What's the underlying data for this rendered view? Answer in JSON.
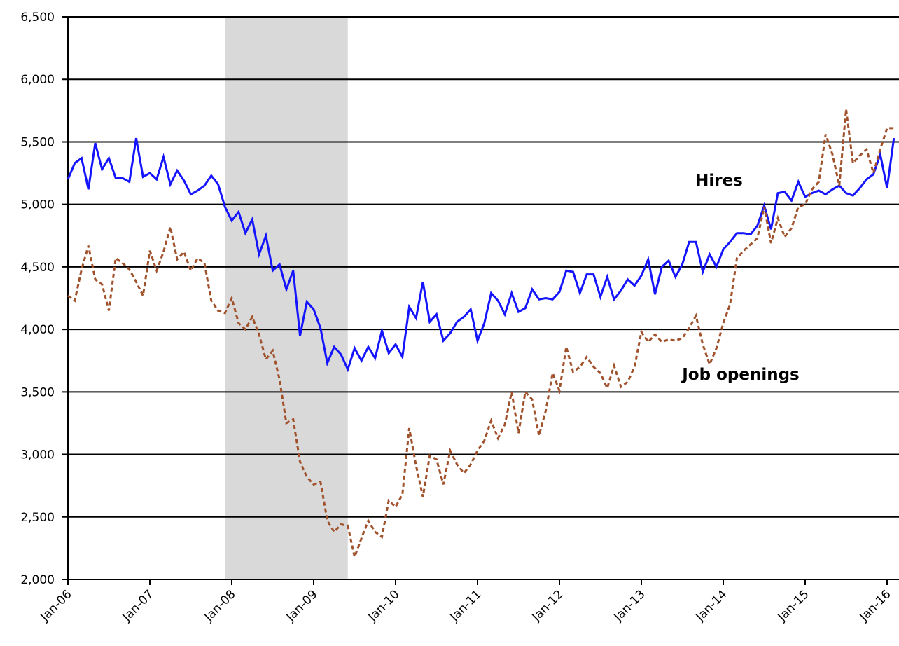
{
  "chart_data": {
    "type": "line",
    "categories": [
      "Jan-06",
      null,
      null,
      null,
      null,
      null,
      null,
      null,
      null,
      null,
      null,
      null,
      "Jan-07",
      null,
      null,
      null,
      null,
      null,
      null,
      null,
      null,
      null,
      null,
      null,
      "Jan-08",
      null,
      null,
      null,
      null,
      null,
      null,
      null,
      null,
      null,
      null,
      null,
      "Jan-09",
      null,
      null,
      null,
      null,
      null,
      null,
      null,
      null,
      null,
      null,
      null,
      "Jan-10",
      null,
      null,
      null,
      null,
      null,
      null,
      null,
      null,
      null,
      null,
      null,
      "Jan-11",
      null,
      null,
      null,
      null,
      null,
      null,
      null,
      null,
      null,
      null,
      null,
      "Jan-12",
      null,
      null,
      null,
      null,
      null,
      null,
      null,
      null,
      null,
      null,
      null,
      "Jan-13",
      null,
      null,
      null,
      null,
      null,
      null,
      null,
      null,
      null,
      null,
      null,
      "Jan-14",
      null,
      null,
      null,
      null,
      null,
      null,
      null,
      null,
      null,
      null,
      null,
      "Jan-15",
      null,
      null,
      null,
      null,
      null,
      null,
      null,
      null,
      null,
      null,
      null,
      "Jan-16",
      null
    ],
    "series": [
      {
        "name": "Hires",
        "color": "#1414ff",
        "dashed": false,
        "values": [
          5200,
          5330,
          5370,
          5120,
          5490,
          5280,
          5370,
          5210,
          5210,
          5180,
          5530,
          5220,
          5250,
          5200,
          5380,
          5160,
          5270,
          5190,
          5080,
          5110,
          5150,
          5230,
          5160,
          4980,
          4870,
          4940,
          4770,
          4880,
          4600,
          4750,
          4470,
          4520,
          4320,
          4470,
          3950,
          4220,
          4160,
          4010,
          3730,
          3860,
          3800,
          3680,
          3850,
          3750,
          3860,
          3770,
          3990,
          3810,
          3880,
          3780,
          4180,
          4090,
          4380,
          4060,
          4120,
          3910,
          3970,
          4060,
          4100,
          4160,
          3910,
          4050,
          4290,
          4230,
          4120,
          4290,
          4140,
          4170,
          4320,
          4240,
          4250,
          4240,
          4300,
          4470,
          4460,
          4290,
          4440,
          4440,
          4260,
          4420,
          4240,
          4310,
          4400,
          4350,
          4430,
          4560,
          4280,
          4500,
          4550,
          4420,
          4520,
          4700,
          4700,
          4460,
          4600,
          4500,
          4640,
          4700,
          4770,
          4770,
          4760,
          4830,
          4990,
          4800,
          5090,
          5100,
          5030,
          5180,
          5060,
          5090,
          5110,
          5080,
          5120,
          5150,
          5090,
          5070,
          5130,
          5200,
          5240,
          5400,
          5130,
          5530
        ]
      },
      {
        "name": "Job openings",
        "color": "#a0522d",
        "dashed": true,
        "values": [
          4270,
          4230,
          4480,
          4670,
          4400,
          4360,
          4150,
          4570,
          4530,
          4480,
          4380,
          4270,
          4630,
          4470,
          4620,
          4820,
          4560,
          4620,
          4470,
          4570,
          4530,
          4230,
          4150,
          4130,
          4250,
          4050,
          4000,
          4100,
          3960,
          3760,
          3830,
          3600,
          3250,
          3280,
          2940,
          2820,
          2760,
          2780,
          2470,
          2380,
          2440,
          2430,
          2180,
          2330,
          2470,
          2380,
          2340,
          2630,
          2580,
          2680,
          3210,
          2910,
          2660,
          2990,
          2960,
          2760,
          3030,
          2920,
          2850,
          2920,
          3030,
          3110,
          3270,
          3130,
          3240,
          3500,
          3170,
          3500,
          3440,
          3150,
          3350,
          3650,
          3510,
          3860,
          3660,
          3700,
          3780,
          3700,
          3650,
          3530,
          3710,
          3540,
          3580,
          3700,
          3980,
          3900,
          3960,
          3900,
          3920,
          3910,
          3930,
          4010,
          4110,
          3880,
          3720,
          3850,
          4050,
          4200,
          4570,
          4630,
          4680,
          4730,
          4980,
          4690,
          4890,
          4740,
          4810,
          4980,
          5000,
          5120,
          5180,
          5560,
          5400,
          5150,
          5760,
          5330,
          5390,
          5440,
          5250,
          5440,
          5610,
          5610
        ]
      }
    ],
    "annotations": [
      "Hires",
      "Job openings"
    ],
    "shade": {
      "from": 23,
      "to": 41,
      "color": "#d9d9d9"
    },
    "ylim": [
      2000,
      6500
    ],
    "yticks": [
      {
        "value": 2000,
        "label": "2,000"
      },
      {
        "value": 2500,
        "label": "2,500"
      },
      {
        "value": 3000,
        "label": "3,000"
      },
      {
        "value": 3500,
        "label": "3,500"
      },
      {
        "value": 4000,
        "label": "4,000"
      },
      {
        "value": 4500,
        "label": "4,500"
      },
      {
        "value": 5000,
        "label": "5,000"
      },
      {
        "value": 5500,
        "label": "5,500"
      },
      {
        "value": 6000,
        "label": "6,000"
      },
      {
        "value": 6500,
        "label": "6,500"
      }
    ],
    "grid": true
  }
}
